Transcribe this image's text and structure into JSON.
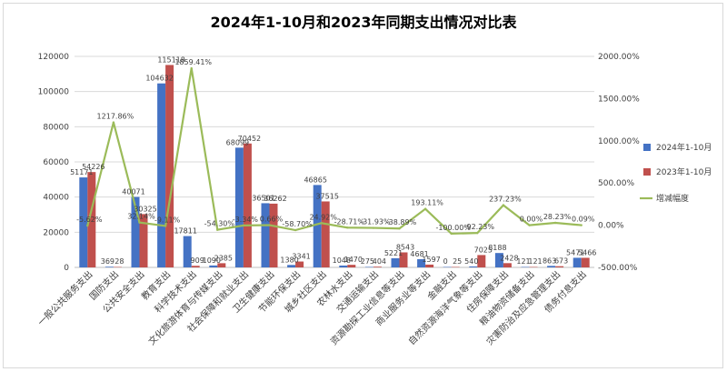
{
  "chart_data": {
    "type": "bar",
    "title": "2024年1-10月和2023年同期支出情况对比表",
    "categories": [
      "一般公共服务支出",
      "国防支出",
      "公共安全支出",
      "教育支出",
      "科学技术支出",
      "文化旅游体育与传媒支出",
      "社会保障和就业支出",
      "卫生健康支出",
      "节能环保支出",
      "城乡社区支出",
      "农林水支出",
      "交通运输支出",
      "资源勘探工业信息等支出",
      "商业服务业等支出",
      "金融支出",
      "自然资源海洋气象等支出",
      "住房保障支出",
      "粮油物资储备支出",
      "灾害防治及应急管理支出",
      "债务付息支出"
    ],
    "series": [
      {
        "name": "2024年1-10月",
        "color": "#4472C4",
        "values": [
          51171,
          369,
          40071,
          104632,
          17811,
          1090,
          68099,
          36501,
          1380,
          46865,
          1048,
          275,
          5221,
          4681,
          0,
          540,
          8188,
          121,
          863,
          5471
        ],
        "labels": [
          "51171",
          "369",
          "40071",
          "104632",
          "17811",
          "1090",
          "68099",
          "36501",
          "1380",
          "46865",
          "1048",
          "275",
          "5221",
          "4681",
          "0",
          "540",
          "8188",
          "121",
          "863",
          "5471"
        ]
      },
      {
        "name": "2023年1-10月",
        "color": "#C0504D",
        "values": [
          54226,
          28,
          30325,
          115118,
          909,
          2385,
          70452,
          36262,
          3341,
          37515,
          1470,
          404,
          8543,
          1597,
          25,
          7025,
          2428,
          121,
          673,
          5466
        ],
        "labels": [
          "54226",
          "28",
          "30325",
          "115118",
          "909",
          "2385",
          "70452",
          "36262",
          "3341",
          "37515",
          "1470",
          "404",
          "8543",
          "1597",
          "25",
          "7025",
          "2428",
          "121",
          "673",
          "5466"
        ]
      },
      {
        "name": "增减幅度",
        "color": "#9BBB59",
        "type": "line",
        "axis": "right",
        "values": [
          -5.62,
          1217.86,
          32.14,
          -9.11,
          1859.41,
          -54.3,
          -3.34,
          0.66,
          -58.7,
          24.92,
          -28.71,
          -31.93,
          -38.89,
          193.11,
          -100.0,
          -92.23,
          237.23,
          0.0,
          28.23,
          0.09
        ],
        "labels": [
          "-5.62%",
          "1217.86%",
          "32.14%",
          "-9.11%",
          "1859.41%",
          "-54.30%",
          "-3.34%",
          "0.66%",
          "-58.70%",
          "24.92%",
          "-28.71%",
          "-31.93%",
          "-38.89%",
          "193.11%",
          "-100.00%",
          "-92.23%",
          "237.23%",
          "0.00%",
          "28.23%",
          "0.09%"
        ]
      }
    ],
    "y_left": {
      "min": 0,
      "max": 120000,
      "ticks": [
        "0",
        "20000",
        "40000",
        "60000",
        "80000",
        "100000",
        "120000"
      ]
    },
    "y_right": {
      "min": -500,
      "max": 2000,
      "ticks": [
        "-500.00%",
        "0.00%",
        "500.00%",
        "1000.00%",
        "1500.00%",
        "2000.00%"
      ]
    },
    "grid": true,
    "legend_position": "right"
  }
}
